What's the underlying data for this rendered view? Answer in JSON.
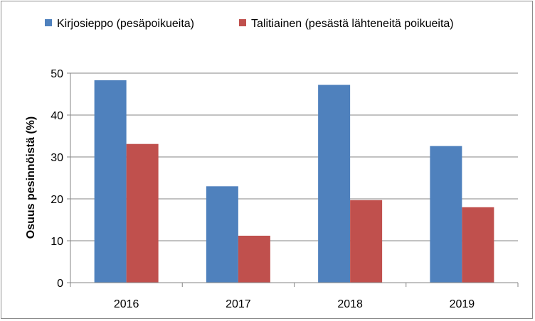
{
  "chart_data": {
    "type": "bar",
    "title": "",
    "xlabel": "",
    "ylabel": "Osuus pesinnöistä (%)",
    "categories": [
      "2016",
      "2017",
      "2018",
      "2019"
    ],
    "series": [
      {
        "name": "Kirjosieppo (pesäpoikueita)",
        "color": "#4F81BD",
        "values": [
          48.3,
          23.0,
          47.2,
          32.6
        ]
      },
      {
        "name": "Talitiainen (pesästä lähteneitä poikueita)",
        "color": "#C0504D",
        "values": [
          33.1,
          11.2,
          19.7,
          18.0
        ]
      }
    ],
    "ylim": [
      0,
      50
    ],
    "yticks": [
      0,
      10,
      20,
      30,
      40,
      50
    ],
    "grid": true,
    "legend": "top"
  }
}
